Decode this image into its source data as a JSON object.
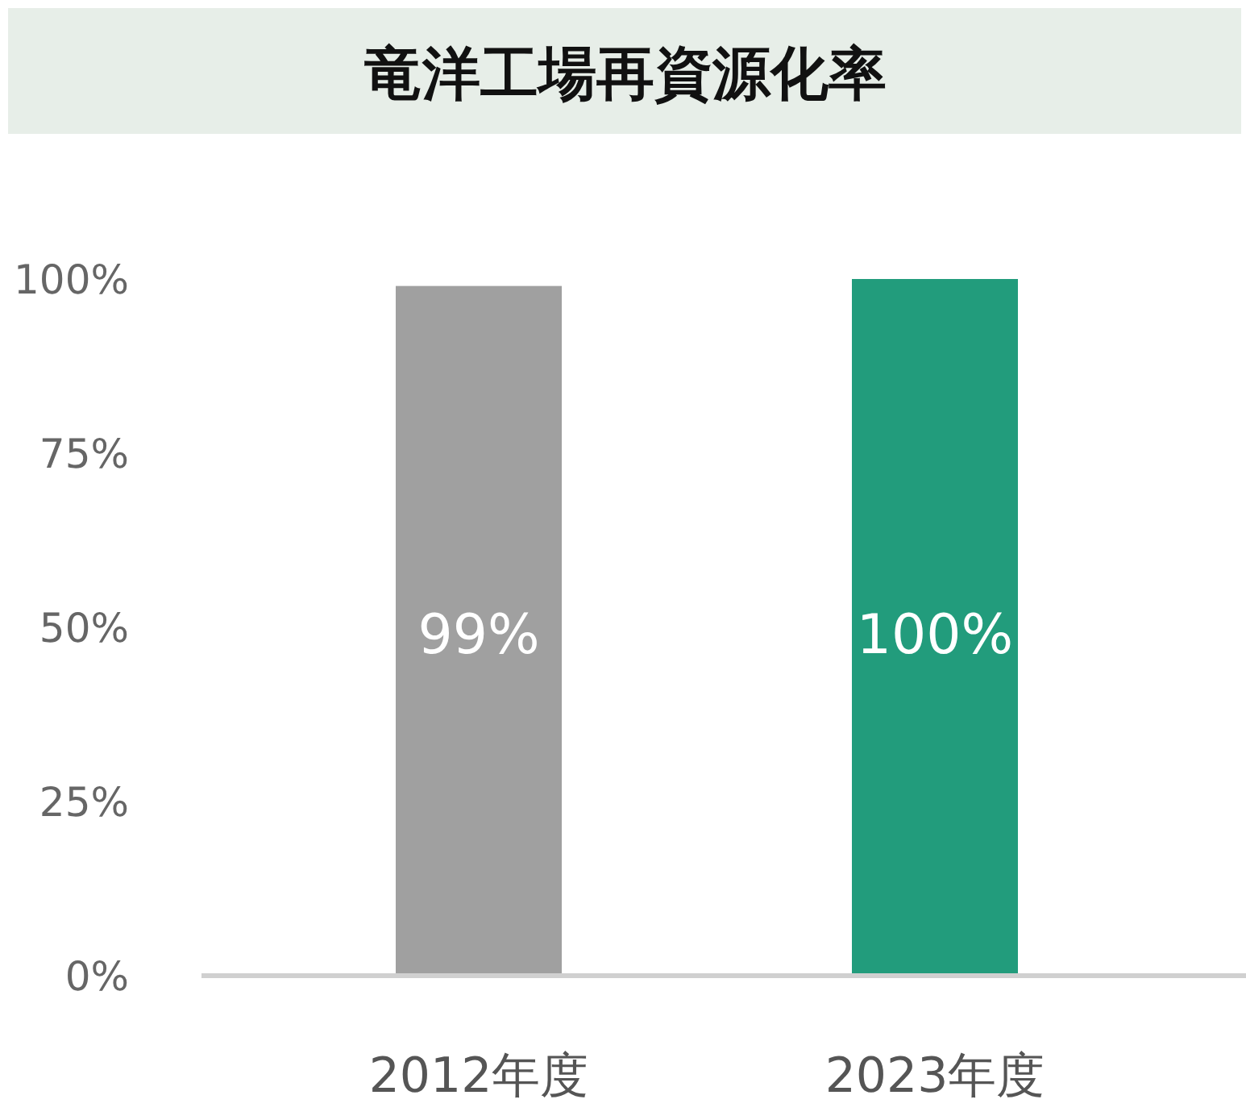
{
  "chart_data": {
    "type": "bar",
    "title": "竜洋工場再資源化率",
    "categories": [
      "2012年度",
      "2023年度"
    ],
    "values": [
      99,
      100
    ],
    "colors": [
      "#a0a0a0",
      "#229c7c"
    ],
    "value_labels": [
      "99%",
      "100%"
    ],
    "ylim": [
      0,
      100
    ],
    "yticks": [
      {
        "value": 0,
        "label": "0%"
      },
      {
        "value": 25,
        "label": "25%"
      },
      {
        "value": 50,
        "label": "50%"
      },
      {
        "value": 75,
        "label": "75%"
      },
      {
        "value": 100,
        "label": "100%"
      }
    ],
    "grid": false
  }
}
